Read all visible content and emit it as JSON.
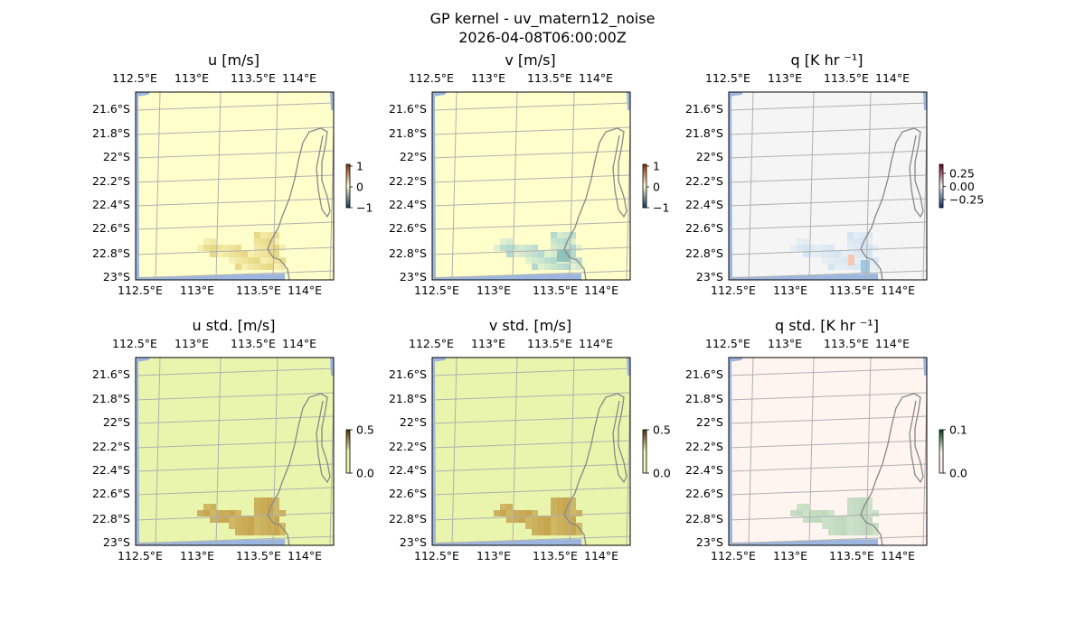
{
  "figure": {
    "title_line1": "GP kernel - uv_matern12_noise",
    "title_line2": "2026-04-08T06:00:00Z"
  },
  "colors": {
    "ocean": "#9db6e0",
    "land_line": "#888888",
    "grid": "#b0b0b0",
    "u_v_background": "#ffffcc",
    "q_background": "#f5f5f5",
    "std_uv_background": "#e9f5ad",
    "q_std_background": "#fff5f0",
    "u_patch": "#e6d27a",
    "v_patch": "#a8d4cf",
    "std_patch": "#c6a24b",
    "q_std_patch": "#bcd9bc"
  },
  "axes": {
    "lon_ticks": [
      "112.5°E",
      "113°E",
      "113.5°E",
      "114°E"
    ],
    "lat_ticks": [
      "21.6°S",
      "21.8°S",
      "22°S",
      "22.2°S",
      "22.4°S",
      "22.6°S",
      "22.8°S",
      "23°S"
    ]
  },
  "panels": [
    {
      "id": "u",
      "title": "u [m/s]",
      "colorbar_ticks": [
        "1",
        "0",
        "−1"
      ],
      "colormap": "u_v_background"
    },
    {
      "id": "v",
      "title": "v [m/s]",
      "colorbar_ticks": [
        "1",
        "0",
        "−1"
      ],
      "colormap": "u_v_background"
    },
    {
      "id": "q",
      "title": "q [K hr ⁻¹]",
      "colorbar_ticks": [
        "0.25",
        "0.00",
        "−0.25"
      ],
      "colormap": "q_background"
    },
    {
      "id": "u_std",
      "title": "u std. [m/s]",
      "colorbar_ticks": [
        "0.5",
        "0.0"
      ],
      "colormap": "std_uv_background"
    },
    {
      "id": "v_std",
      "title": "v std. [m/s]",
      "colorbar_ticks": [
        "0.5",
        "0.0"
      ],
      "colormap": "std_uv_background"
    },
    {
      "id": "q_std",
      "title": "q std. [K hr ⁻¹]",
      "colorbar_ticks": [
        "0.1",
        "0.0"
      ],
      "colormap": "q_std_background"
    }
  ]
}
